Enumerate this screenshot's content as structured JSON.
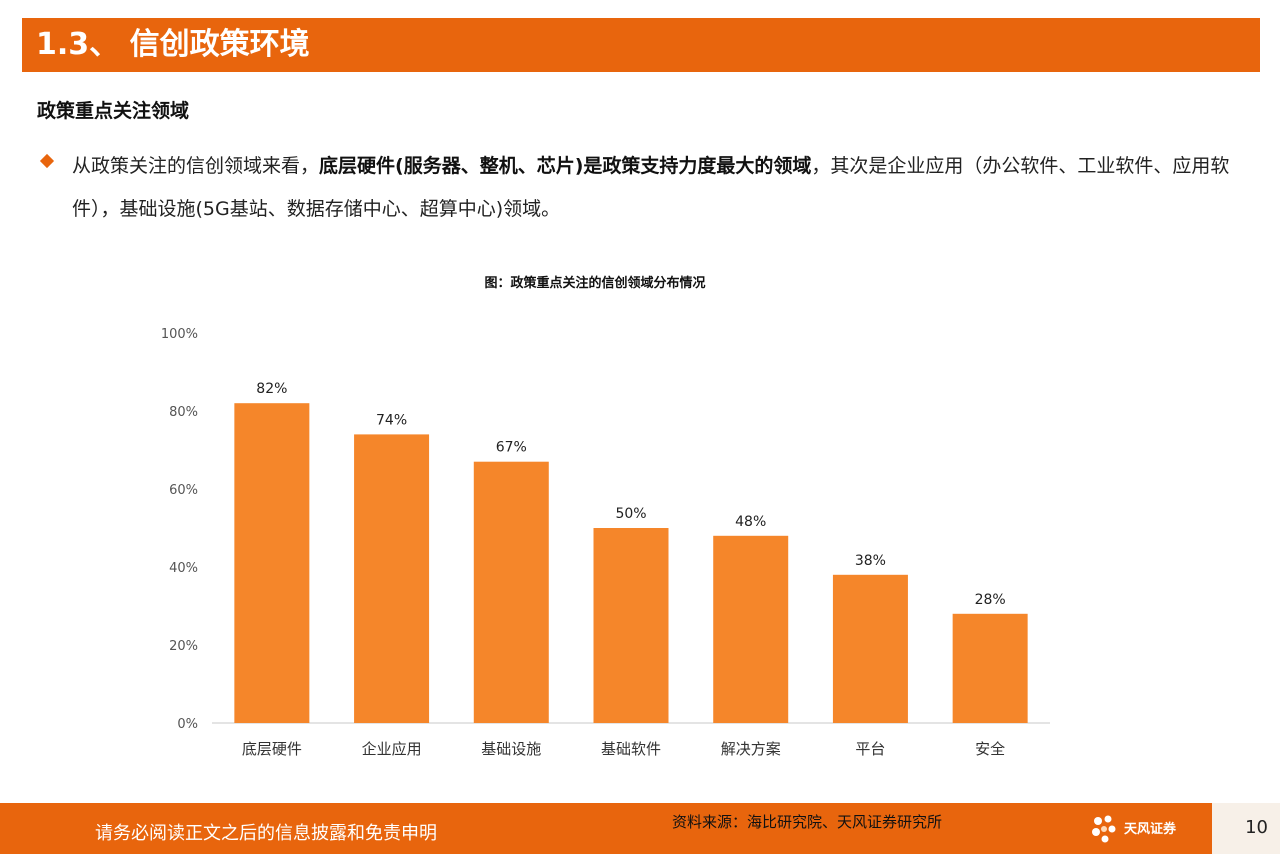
{
  "header": {
    "title": "1.3、 信创政策环境"
  },
  "section": {
    "subtitle": "政策重点关注领域"
  },
  "bullet": {
    "part1": "从政策关注的信创领域来看，",
    "bold": "底层硬件(服务器、整机、芯片)是政策支持力度最大的领域",
    "part2": "，其次是企业应用（办公软件、工业软件、应用软件），基础设施(5G基站、数据存储中心、超算中心)领域。"
  },
  "chart_data": {
    "type": "bar",
    "title": "图：政策重点关注的信创领域分布情况",
    "categories": [
      "底层硬件",
      "企业应用",
      "基础设施",
      "基础软件",
      "解决方案",
      "平台",
      "安全"
    ],
    "values": [
      82,
      74,
      67,
      50,
      48,
      38,
      28
    ],
    "value_labels": [
      "82%",
      "74%",
      "67%",
      "50%",
      "48%",
      "38%",
      "28%"
    ],
    "y_ticks": [
      "0%",
      "20%",
      "40%",
      "60%",
      "80%",
      "100%"
    ],
    "ylim": [
      0,
      100
    ],
    "grid": false,
    "bar_color": "#f5862a"
  },
  "footer": {
    "disclaimer": "请务必阅读正文之后的信息披露和免责申明",
    "source": "资料来源：海比研究院、天风证券研究所",
    "logo_text": "天风证券",
    "page_number": "10"
  },
  "colors": {
    "accent": "#e8650d",
    "bar": "#f5862a"
  }
}
